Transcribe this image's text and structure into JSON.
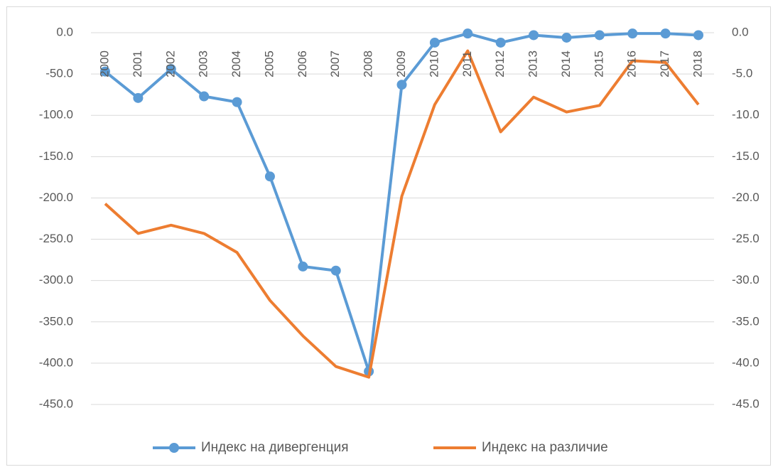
{
  "chart_data": {
    "type": "line",
    "categories": [
      "2000",
      "2001",
      "2002",
      "2003",
      "2004",
      "2005",
      "2006",
      "2007",
      "2008",
      "2009",
      "2010",
      "2011",
      "2012",
      "2013",
      "2014",
      "2015",
      "2016",
      "2017",
      "2018"
    ],
    "series": [
      {
        "name": "Индекс на дивергенция",
        "color": "#5b9bd5",
        "axis": "y",
        "marker": true,
        "values": [
          -47,
          -79,
          -44,
          -77,
          -84,
          -174,
          -283,
          -288,
          -410,
          -63,
          -12,
          -1,
          -12,
          -3,
          -6,
          -3,
          -1,
          -1,
          -3
        ]
      },
      {
        "name": "Индекс на различие",
        "color": "#ed7d31",
        "axis": "y2",
        "marker": false,
        "values": [
          -20.7,
          -24.3,
          -23.3,
          -24.3,
          -26.6,
          -32.4,
          -36.7,
          -40.4,
          -41.7,
          -19.8,
          -8.7,
          -2.2,
          -12.0,
          -7.8,
          -9.6,
          -8.8,
          -3.4,
          -3.6,
          -8.7
        ]
      }
    ],
    "ylim": [
      -450,
      0
    ],
    "yticks": [
      {
        "value": 0,
        "label": "0.0"
      },
      {
        "value": -50,
        "label": "-50.0"
      },
      {
        "value": -100,
        "label": "-100.0"
      },
      {
        "value": -150,
        "label": "-150.0"
      },
      {
        "value": -200,
        "label": "-200.0"
      },
      {
        "value": -250,
        "label": "-250.0"
      },
      {
        "value": -300,
        "label": "-300.0"
      },
      {
        "value": -350,
        "label": "-350.0"
      },
      {
        "value": -400,
        "label": "-400.0"
      },
      {
        "value": -450,
        "label": "-450.0"
      }
    ],
    "y2lim": [
      -45,
      0
    ],
    "y2ticks": [
      {
        "value": 0,
        "label": "0.0"
      },
      {
        "value": -5,
        "label": "-5.0"
      },
      {
        "value": -10,
        "label": "-10.0"
      },
      {
        "value": -15,
        "label": "-15.0"
      },
      {
        "value": -20,
        "label": "-20.0"
      },
      {
        "value": -25,
        "label": "-25.0"
      },
      {
        "value": -30,
        "label": "-30.0"
      },
      {
        "value": -35,
        "label": "-35.0"
      },
      {
        "value": -40,
        "label": "-40.0"
      },
      {
        "value": -45,
        "label": "-45.0"
      }
    ],
    "grid": true,
    "legend": "bottom"
  }
}
